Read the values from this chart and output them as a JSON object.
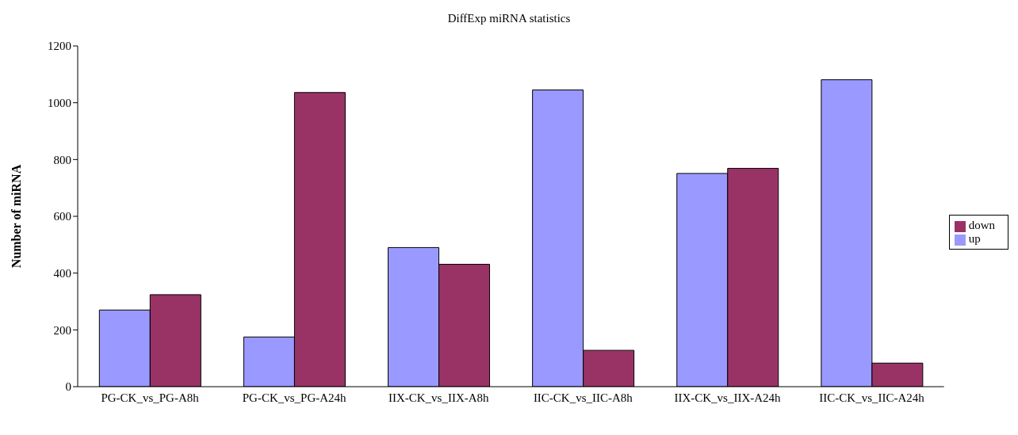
{
  "chart_data": {
    "type": "bar",
    "title": "DiffExp miRNA statistics",
    "ylabel": "Number of miRNA",
    "categories": [
      "PG-CK_vs_PG-A8h",
      "PG-CK_vs_PG-A24h",
      "IIX-CK_vs_IIX-A8h",
      "IIC-CK_vs_IIC-A8h",
      "IIX-CK_vs_IIX-A24h",
      "IIC-CK_vs_IIC-A24h"
    ],
    "series": [
      {
        "name": "up",
        "color": "#9999ff",
        "values": [
          270,
          175,
          490,
          1045,
          751,
          1081
        ]
      },
      {
        "name": "down",
        "color": "#993366",
        "values": [
          324,
          1036,
          431,
          128,
          769,
          83
        ]
      }
    ],
    "ylim": [
      0,
      1200
    ],
    "yticks": [
      0,
      200,
      400,
      600,
      800,
      1000,
      1200
    ],
    "grid": false,
    "legend": "right"
  }
}
